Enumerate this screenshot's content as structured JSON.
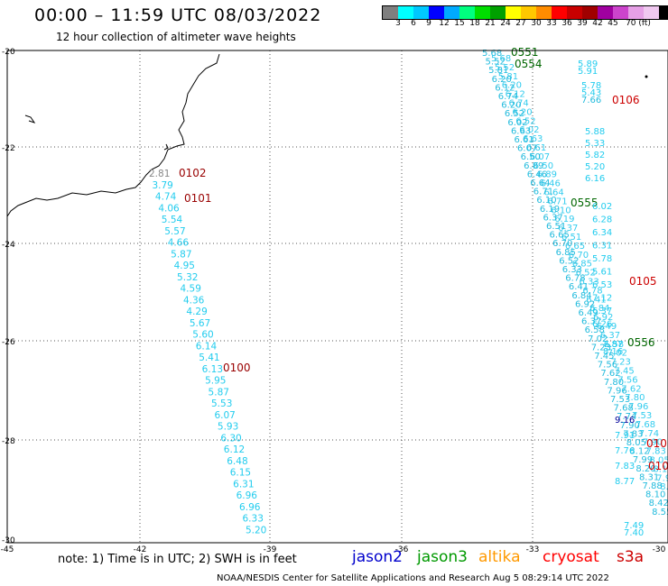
{
  "header": {
    "title": "00:00 – 11:59 UTC 08/03/2022",
    "subtitle": "12 hour collection of altimeter wave heights"
  },
  "colorbar": {
    "colors": [
      "#7f7f7f",
      "#00ffff",
      "#00c8ff",
      "#0000ff",
      "#00aaff",
      "#00ff7f",
      "#00dd00",
      "#00a000",
      "#ffff00",
      "#ffc800",
      "#ff8c00",
      "#ff0000",
      "#c80000",
      "#a00000",
      "#a000a0",
      "#cc44cc",
      "#e6a0e6",
      "#f0c8f0",
      "#000000"
    ],
    "labels": [
      "3",
      "6",
      "9",
      "12",
      "15",
      "18",
      "21",
      "24",
      "27",
      "30",
      "33",
      "36",
      "39",
      "42",
      "45",
      "70 (ft)"
    ]
  },
  "axes": {
    "lat_labels": [
      "-20",
      "-22",
      "-24",
      "-26",
      "-28",
      "-30"
    ],
    "lon_labels": [
      "-45",
      "-42",
      "-39",
      "-36",
      "-33",
      "-30"
    ]
  },
  "tracks": {
    "west": {
      "values": [
        "2.81",
        "3.79",
        "4.74",
        "4.06",
        "5.54",
        "5.57",
        "4.66",
        "5.87",
        "4.95",
        "5.32",
        "4.59",
        "4.36",
        "4.29",
        "5.67",
        "5.60",
        "6.14",
        "5.41",
        "6.13",
        "5.95",
        "5.87",
        "5.53",
        "6.07",
        "5.93",
        "6.30",
        "6.12",
        "6.48",
        "6.15",
        "6.31",
        "6.96",
        "6.96",
        "6.33",
        "5.20"
      ],
      "times": [
        "0102",
        "0101",
        "0100"
      ]
    },
    "east_blocks": [
      {
        "values": [
          "5.89",
          "5.91"
        ],
        "times": [
          "0551",
          "0554"
        ]
      },
      {
        "values": [
          "5.78",
          "5.43",
          "7.66"
        ],
        "times": [
          "0106"
        ]
      },
      {
        "values": [
          "5.88",
          "5.33",
          "5.82",
          "5.20",
          "6.16"
        ],
        "times": [
          "0555"
        ]
      },
      {
        "values": [
          "6.02",
          "6.28",
          "6.34",
          "6.31",
          "5.78",
          "5.61",
          "6.53",
          "7.12",
          "6.37",
          "6.26"
        ],
        "times": [
          "0105"
        ]
      },
      {
        "values": [
          "7.87",
          "8.16"
        ],
        "times": [
          "0556"
        ]
      },
      {
        "values": [
          "9.16",
          "7.91",
          "7.76",
          "7.83",
          "8.77",
          "7.49",
          "7.40"
        ],
        "times": [
          "010",
          "010"
        ]
      }
    ],
    "east_diag": [
      "5.68",
      "5.52",
      "5.81",
      "6.20",
      "6.12",
      "6.74",
      "6.20",
      "6.52",
      "6.02",
      "6.63",
      "6.61",
      "6.07",
      "6.50",
      "6.89",
      "6.46",
      "6.64",
      "6.71",
      "6.10",
      "6.19",
      "6.37",
      "6.51",
      "6.65",
      "6.70",
      "6.85",
      "6.52",
      "6.33",
      "6.78",
      "6.41",
      "6.84",
      "6.92",
      "6.49",
      "6.37",
      "6.58",
      "7.02",
      "7.23",
      "7.45",
      "7.56",
      "7.62",
      "7.80",
      "7.96",
      "7.53",
      "7.68",
      "7.74",
      "7.90",
      "7.83",
      "8.05",
      "8.12",
      "7.99",
      "8.20",
      "8.31",
      "7.88",
      "8.10",
      "8.42",
      "8.55"
    ]
  },
  "footer": {
    "note": "note: 1) Time is in UTC; 2) SWH is in feet",
    "satellites": [
      {
        "name": "jason2",
        "color": "#0000cc"
      },
      {
        "name": "jason3",
        "color": "#009900"
      },
      {
        "name": "altika",
        "color": "#ff9900"
      },
      {
        "name": "cryosat",
        "color": "#ff0000"
      },
      {
        "name": "s3a",
        "color": "#cc0000"
      }
    ],
    "credit": "NOAA/NESDIS Center for Satellite Applications and Research    Aug  5 08:29:14 UTC 2022"
  }
}
